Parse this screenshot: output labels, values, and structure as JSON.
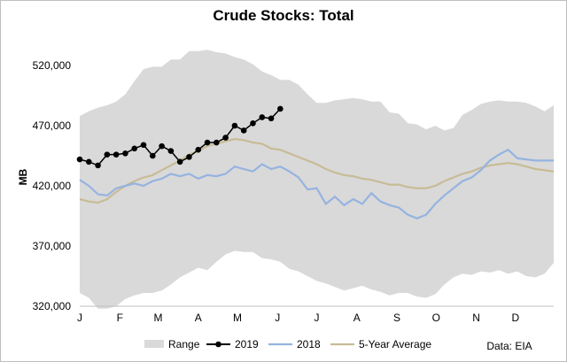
{
  "chart_data": {
    "type": "line",
    "title": "Crude Stocks: Total",
    "ylabel": "MB",
    "xlabel": "",
    "ylim": [
      320000,
      545000
    ],
    "yticks": [
      320000,
      370000,
      420000,
      470000,
      520000
    ],
    "ytick_labels": [
      "320,000",
      "370,000",
      "420,000",
      "470,000",
      "520,000"
    ],
    "x_domain": [
      1,
      53
    ],
    "xticks": [
      {
        "label": "J",
        "week": 1
      },
      {
        "label": "F",
        "week": 5.4
      },
      {
        "label": "M",
        "week": 9.6
      },
      {
        "label": "A",
        "week": 14
      },
      {
        "label": "M",
        "week": 18.3
      },
      {
        "label": "J",
        "week": 22.7
      },
      {
        "label": "J",
        "week": 27
      },
      {
        "label": "A",
        "week": 31.4
      },
      {
        "label": "S",
        "week": 35.8
      },
      {
        "label": "O",
        "week": 40.1
      },
      {
        "label": "N",
        "week": 44.5
      },
      {
        "label": "D",
        "week": 48.8
      }
    ],
    "range": {
      "name": "Range",
      "upper": [
        478000,
        482000,
        485000,
        487000,
        490000,
        496000,
        507000,
        517000,
        519000,
        519000,
        525000,
        525000,
        532000,
        532000,
        533000,
        531000,
        530000,
        527000,
        525000,
        521000,
        515000,
        512000,
        508000,
        508000,
        504000,
        496000,
        489000,
        489000,
        491000,
        492000,
        493000,
        492000,
        490000,
        490000,
        481000,
        480000,
        472000,
        471000,
        467000,
        470000,
        466000,
        468000,
        479000,
        483000,
        488000,
        490000,
        491000,
        490000,
        490000,
        489000,
        486000,
        482000,
        487000
      ],
      "lower": [
        331000,
        327000,
        318000,
        318000,
        320000,
        326000,
        329000,
        331000,
        331000,
        333000,
        338000,
        344000,
        348000,
        352000,
        350000,
        357000,
        363000,
        366000,
        365000,
        365000,
        360000,
        359000,
        357000,
        351000,
        349000,
        345000,
        341000,
        339000,
        336000,
        333000,
        335000,
        337000,
        334000,
        332000,
        329000,
        331000,
        331000,
        328000,
        327000,
        330000,
        338000,
        344000,
        347000,
        346000,
        349000,
        348000,
        350000,
        347000,
        349000,
        345000,
        344000,
        347000,
        356000
      ]
    },
    "series": [
      {
        "name": "2019",
        "color": "#000000",
        "values": [
          442000,
          440000,
          437000,
          446000,
          446000,
          447000,
          451000,
          454000,
          445000,
          453000,
          449000,
          440000,
          444000,
          450000,
          456000,
          456000,
          460000,
          470000,
          466000,
          472000,
          477000,
          476000,
          484000
        ]
      },
      {
        "name": "2018",
        "color": "#95b3e0",
        "values": [
          425000,
          420000,
          413000,
          412000,
          418000,
          420000,
          422000,
          420000,
          424000,
          426000,
          430000,
          428000,
          430000,
          426000,
          429000,
          428000,
          430000,
          436000,
          434000,
          432000,
          438000,
          434000,
          436000,
          432000,
          427000,
          417000,
          418000,
          405000,
          411000,
          404000,
          409000,
          405000,
          414000,
          407000,
          404000,
          402000,
          396000,
          393000,
          396000,
          405000,
          412000,
          418000,
          424000,
          427000,
          433000,
          441000,
          446000,
          450000,
          443000,
          442000,
          441000,
          441000,
          441000
        ]
      },
      {
        "name": "5-Year Average",
        "color": "#c8bb96",
        "values": [
          409000,
          407000,
          406000,
          409000,
          415000,
          420000,
          424000,
          427000,
          429000,
          433000,
          437000,
          441000,
          446000,
          449000,
          453000,
          455000,
          457000,
          459000,
          458000,
          456000,
          455000,
          451000,
          450000,
          447000,
          444000,
          441000,
          438000,
          434000,
          431000,
          429000,
          428000,
          426000,
          425000,
          423000,
          421000,
          421000,
          419000,
          418000,
          418000,
          420000,
          424000,
          427000,
          430000,
          432000,
          435000,
          437000,
          438000,
          439000,
          438000,
          436000,
          434000,
          433000,
          432000
        ]
      }
    ],
    "legend": [
      "Range",
      "2019",
      "2018",
      "5-Year Average"
    ],
    "legend_position": "bottom",
    "grid": false,
    "source": "Data: EIA"
  }
}
